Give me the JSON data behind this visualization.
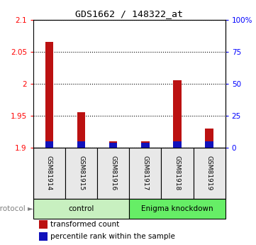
{
  "title": "GDS1662 / 148322_at",
  "samples": [
    "GSM81914",
    "GSM81915",
    "GSM81916",
    "GSM81917",
    "GSM81918",
    "GSM81919"
  ],
  "red_values": [
    2.065,
    1.955,
    1.91,
    1.91,
    2.005,
    1.93
  ],
  "blue_heights_pct": [
    5,
    5,
    4,
    4,
    5,
    5
  ],
  "ylim_left": [
    1.9,
    2.1
  ],
  "ylim_right": [
    0,
    100
  ],
  "yticks_left": [
    1.9,
    1.95,
    2.0,
    2.05,
    2.1
  ],
  "yticks_right": [
    0,
    25,
    50,
    75,
    100
  ],
  "ytick_labels_left": [
    "1.9",
    "1.95",
    "2",
    "2.05",
    "2.1"
  ],
  "ytick_labels_right": [
    "0",
    "25",
    "50",
    "75",
    "100%"
  ],
  "protocol_groups": [
    {
      "label": "control",
      "samples": [
        0,
        1,
        2
      ],
      "color": "#c8f0c0"
    },
    {
      "label": "Enigma knockdown",
      "samples": [
        3,
        4,
        5
      ],
      "color": "#66ee66"
    }
  ],
  "red_color": "#bb1111",
  "blue_color": "#1111bb",
  "bar_width": 0.25,
  "base_value": 1.9,
  "grid_color": "black",
  "bg_color": "#d8d8d8",
  "label_bg": "#e8e8e8"
}
